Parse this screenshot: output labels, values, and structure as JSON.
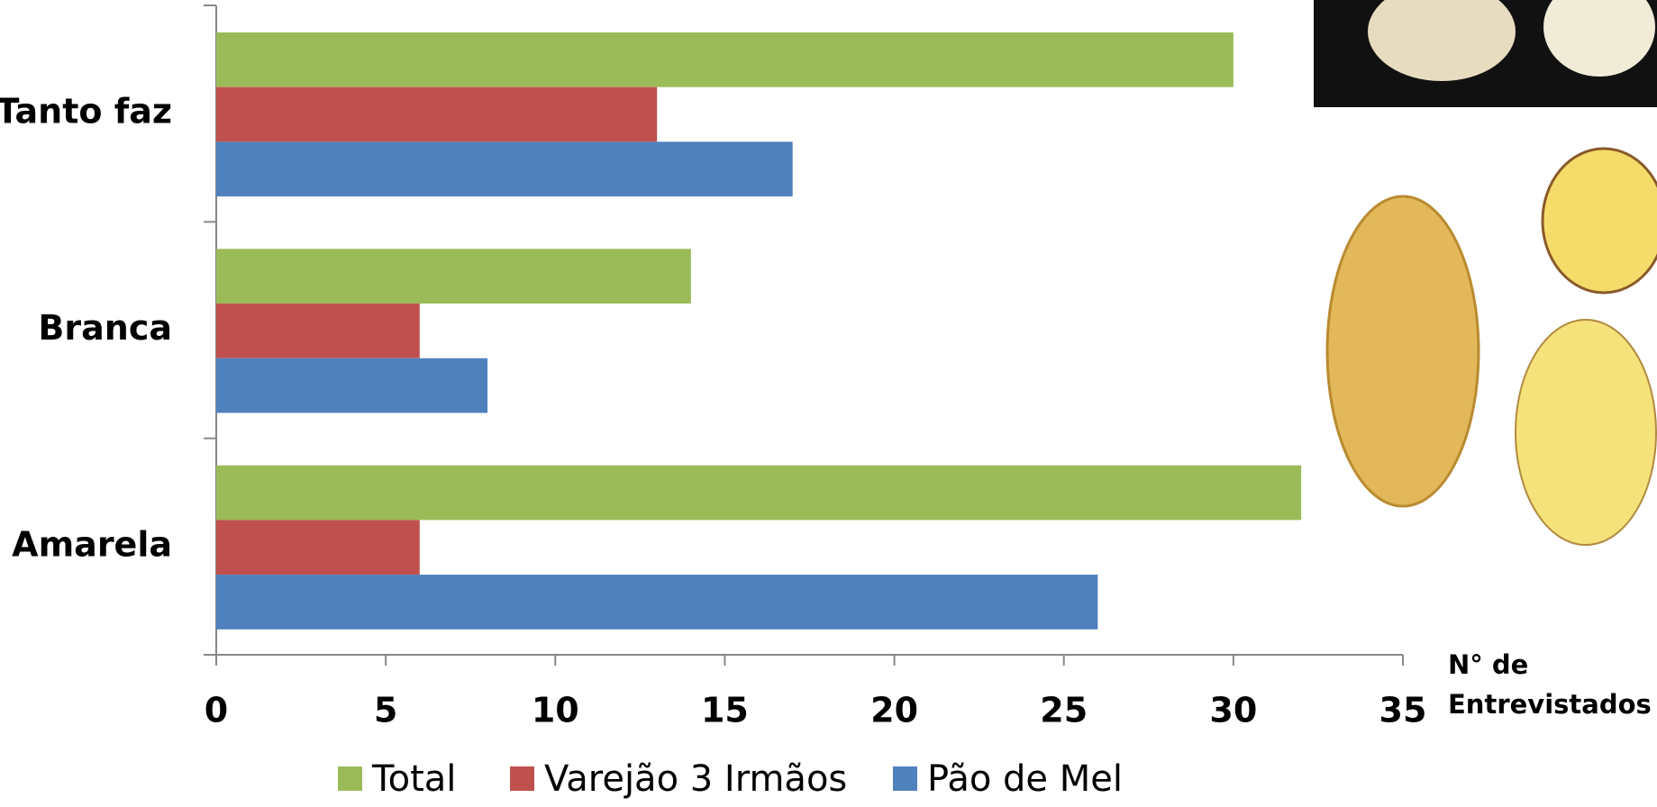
{
  "chart_data": {
    "type": "bar",
    "orientation": "horizontal",
    "categories": [
      "Tanto faz",
      "Branca",
      "Amarela"
    ],
    "series": [
      {
        "name": "Total",
        "color": "#9bbb59",
        "values": [
          30,
          14,
          32
        ]
      },
      {
        "name": "Varejão 3 Irmãos",
        "color": "#c0504d",
        "values": [
          13,
          6,
          6
        ]
      },
      {
        "name": "Pão de Mel",
        "color": "#4f81bd",
        "values": [
          17,
          8,
          26
        ]
      }
    ],
    "x_label": "N° de Entrevistados",
    "xlim": [
      0,
      35
    ],
    "xticks": [
      0,
      5,
      10,
      15,
      20,
      25,
      30,
      35
    ],
    "grid": false,
    "legend": "bottom"
  }
}
